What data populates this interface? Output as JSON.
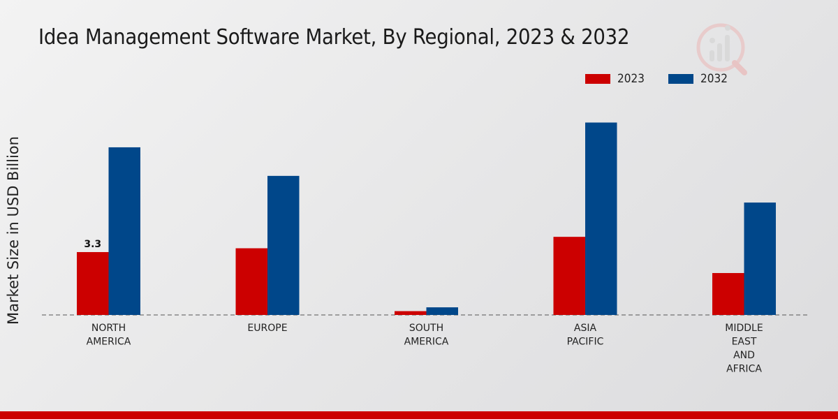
{
  "chart_data": {
    "type": "bar",
    "title": "Idea Management Software Market, By Regional, 2023 & 2032",
    "xlabel": "",
    "ylabel": "Market Size in USD Billion",
    "ylim": [
      0,
      12.5
    ],
    "categories": [
      [
        "NORTH",
        "AMERICA"
      ],
      [
        "EUROPE"
      ],
      [
        "SOUTH",
        "AMERICA"
      ],
      [
        "ASIA",
        "PACIFIC"
      ],
      [
        "MIDDLE",
        "EAST",
        "AND",
        "AFRICA"
      ]
    ],
    "series": [
      {
        "name": "2023",
        "color": "#cc0000",
        "values": [
          3.3,
          3.5,
          0.2,
          4.1,
          2.2
        ]
      },
      {
        "name": "2032",
        "color": "#00478a",
        "values": [
          8.8,
          7.3,
          0.4,
          10.1,
          5.9
        ]
      }
    ],
    "data_labels": [
      {
        "series": 0,
        "index": 0,
        "text": "3.3"
      }
    ],
    "legend_position": "top-right",
    "grid": false
  }
}
